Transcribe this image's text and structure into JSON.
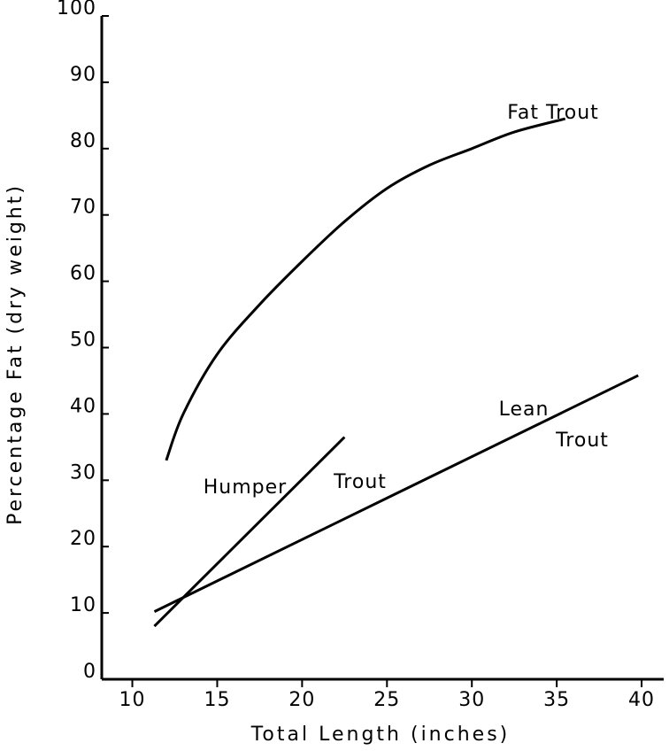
{
  "chart_data": {
    "type": "line",
    "xlabel": "Total Length (inches)",
    "ylabel": "Percentage Fat (dry weight)",
    "xlim": [
      8.2,
      41.3
    ],
    "ylim": [
      0,
      100
    ],
    "xticks": [
      10,
      15,
      20,
      25,
      30,
      35,
      40
    ],
    "yticks": [
      0,
      10,
      20,
      30,
      40,
      50,
      60,
      70,
      80,
      90,
      100
    ],
    "series": [
      {
        "name": "Fat Trout",
        "color": "#000000",
        "x": [
          12,
          13,
          15,
          17.5,
          20,
          22.5,
          25,
          27.5,
          30,
          32.5,
          35.5
        ],
        "values": [
          33,
          40,
          49,
          56.5,
          63,
          69,
          74,
          77.5,
          80,
          82.5,
          84.5
        ]
      },
      {
        "name": "Humper Trout",
        "color": "#000000",
        "x": [
          11.3,
          22.5
        ],
        "values": [
          8,
          36.5
        ]
      },
      {
        "name": "Lean Trout",
        "color": "#000000",
        "x": [
          11.3,
          39.8
        ],
        "values": [
          10.2,
          45.8
        ]
      }
    ],
    "annotations": [
      "Fat Trout",
      "Humper",
      "Trout",
      "Lean",
      "Trout"
    ]
  }
}
